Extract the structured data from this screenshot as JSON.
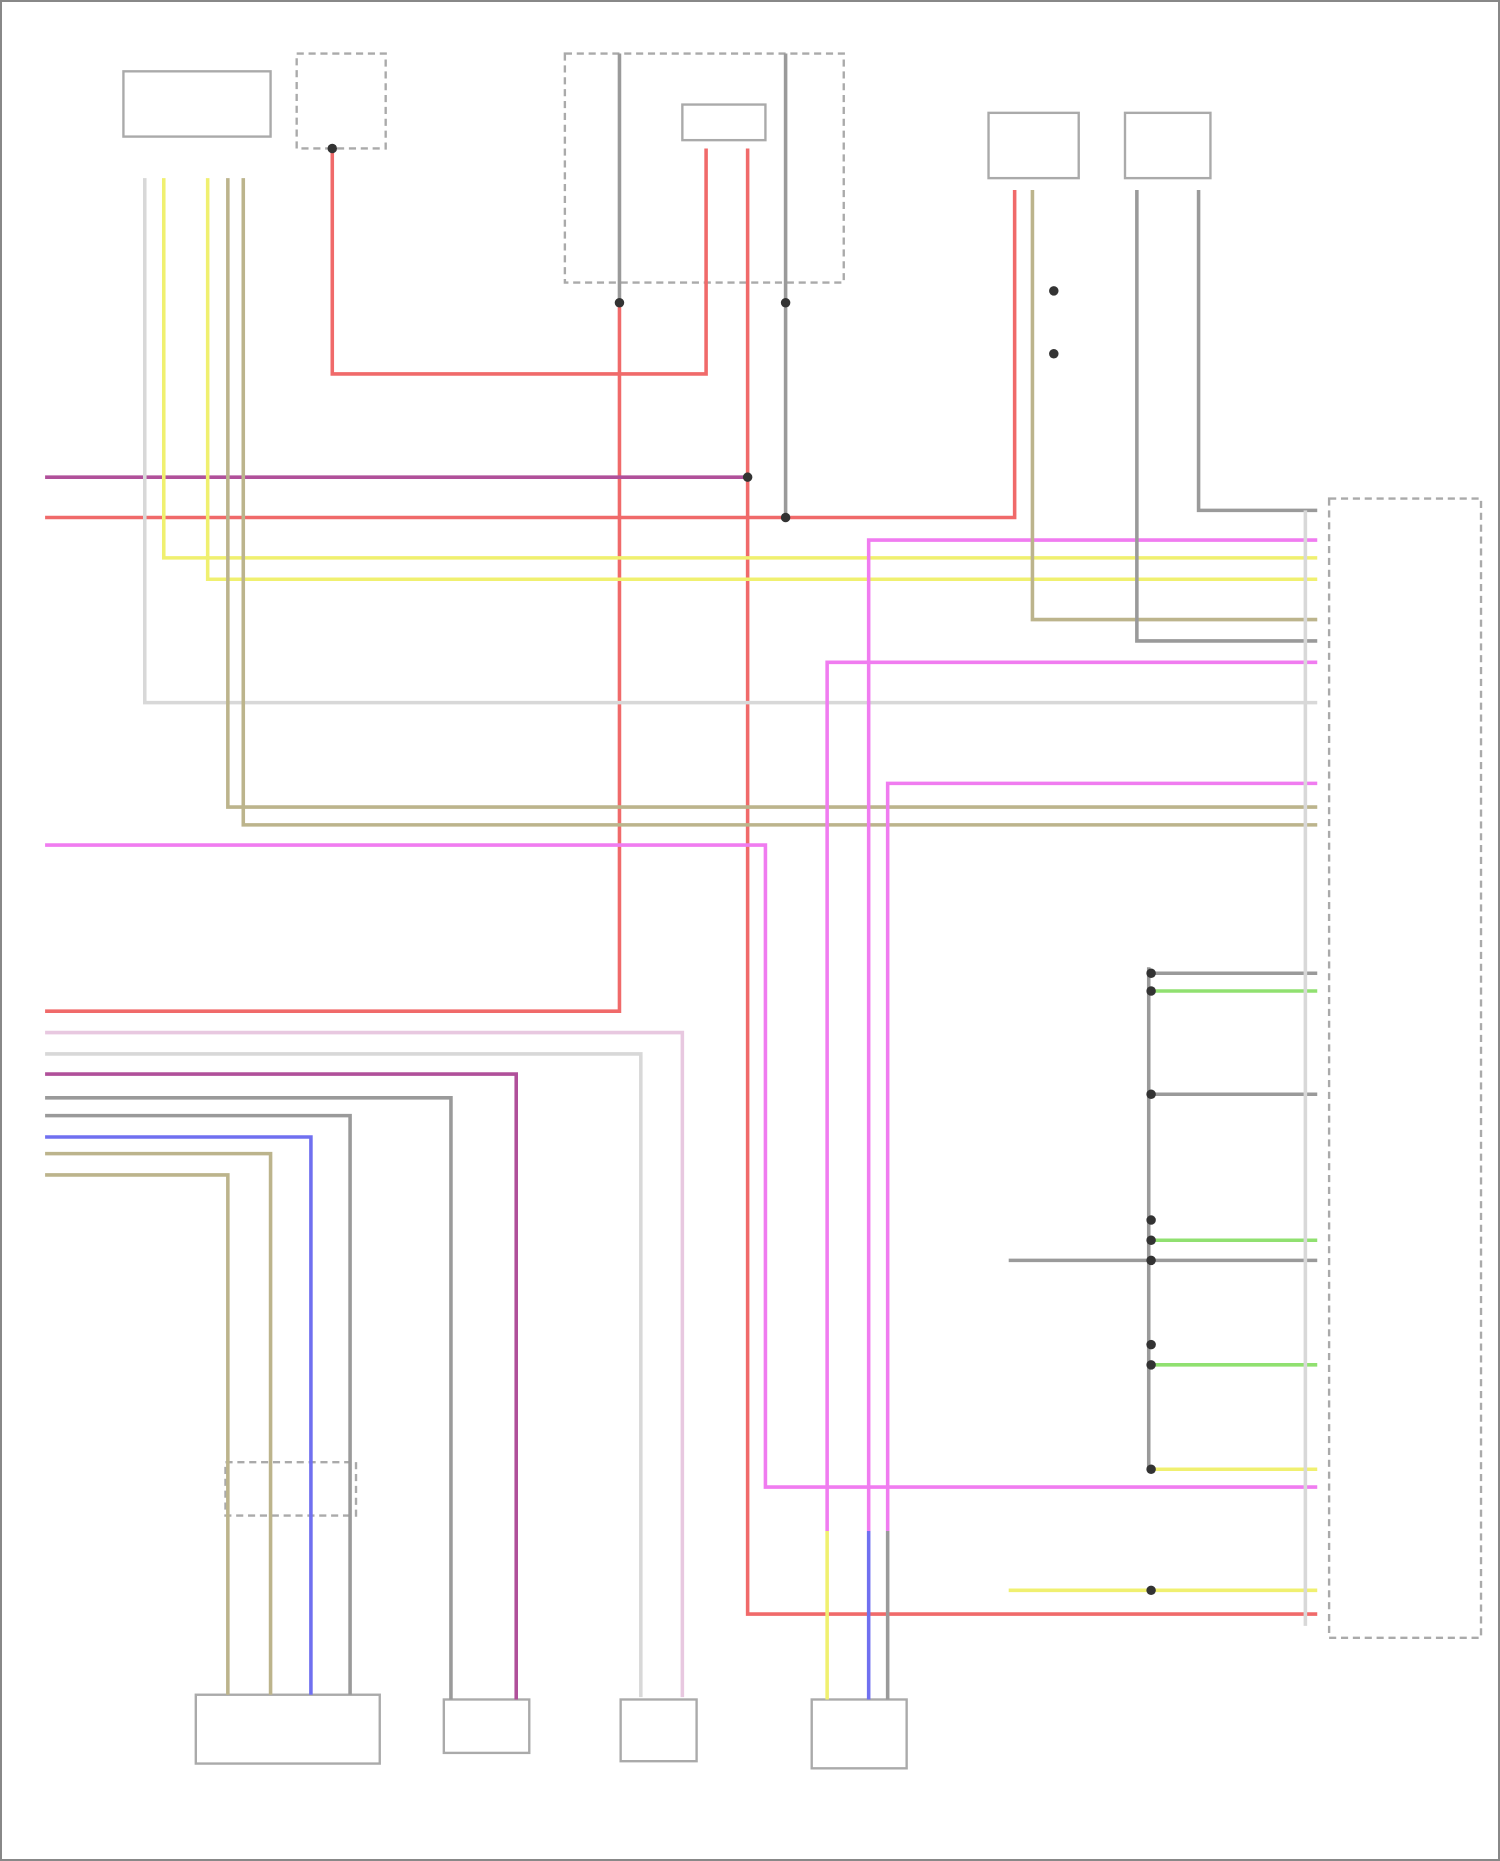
{
  "diagram": {
    "components": [
      {
        "id": "top-left-module",
        "label": ""
      },
      {
        "id": "switch-top-left",
        "label": ""
      },
      {
        "id": "switch-group-center",
        "label": ""
      },
      {
        "id": "actuator-top-right",
        "label": ""
      },
      {
        "id": "sensor-top-right",
        "label": ""
      },
      {
        "id": "main-connector-right",
        "label": ""
      },
      {
        "id": "fuel-pump-module",
        "label": ""
      },
      {
        "id": "sender-module",
        "label": ""
      },
      {
        "id": "pressure-sensor-bottom",
        "label": ""
      },
      {
        "id": "fuel-level-sensor",
        "label": ""
      }
    ],
    "wire_colors": {
      "red": "#f06a6a",
      "purple": "#b0509a",
      "yellow": "#f0f070",
      "magenta": "#f07cf0",
      "tan": "#bcb48c",
      "gray": "#9a9a9a",
      "light_gray": "#d8d8d8",
      "light_pink": "#e8c8e0",
      "blue": "#7070f0",
      "green": "#90e070"
    }
  }
}
